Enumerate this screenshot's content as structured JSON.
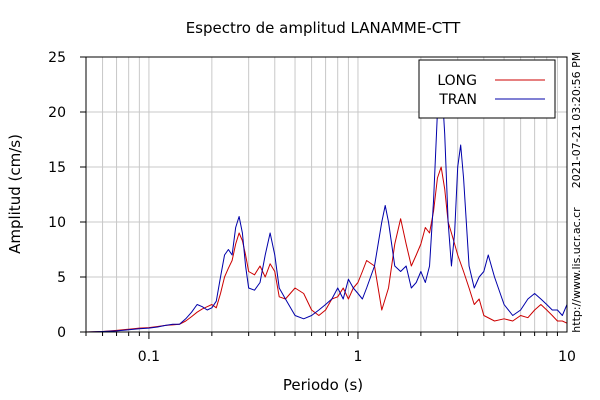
{
  "chart_data": {
    "type": "line",
    "title": "Espectro de amplitud LANAMME-CTT",
    "xlabel": "Periodo (s)",
    "ylabel": "Amplitud (cm/s)",
    "x_scale": "log",
    "xlim": [
      0.05,
      10
    ],
    "ylim": [
      0,
      25
    ],
    "x_ticks": [
      {
        "value": 0.1,
        "label": "0.1"
      },
      {
        "value": 1,
        "label": "1"
      },
      {
        "value": 10,
        "label": "10"
      }
    ],
    "y_ticks": [
      {
        "value": 0,
        "label": "0"
      },
      {
        "value": 5,
        "label": "5"
      },
      {
        "value": 10,
        "label": "10"
      },
      {
        "value": 15,
        "label": "15"
      },
      {
        "value": 20,
        "label": "20"
      },
      {
        "value": 25,
        "label": "25"
      }
    ],
    "grid": true,
    "legend_position": "top-right",
    "side_labels": {
      "timestamp": "2021-07-21 03:20:56 PM",
      "url": "http://www.lis.ucr.ac.cr"
    },
    "series": [
      {
        "name": "LONG",
        "color": "#cc0000",
        "points": [
          [
            0.05,
            0.0
          ],
          [
            0.06,
            0.05
          ],
          [
            0.07,
            0.15
          ],
          [
            0.08,
            0.25
          ],
          [
            0.09,
            0.35
          ],
          [
            0.1,
            0.4
          ],
          [
            0.11,
            0.5
          ],
          [
            0.12,
            0.6
          ],
          [
            0.13,
            0.65
          ],
          [
            0.14,
            0.7
          ],
          [
            0.15,
            1.0
          ],
          [
            0.16,
            1.4
          ],
          [
            0.17,
            1.8
          ],
          [
            0.18,
            2.1
          ],
          [
            0.19,
            2.3
          ],
          [
            0.2,
            2.5
          ],
          [
            0.21,
            2.2
          ],
          [
            0.22,
            3.5
          ],
          [
            0.23,
            5.0
          ],
          [
            0.24,
            5.8
          ],
          [
            0.25,
            6.5
          ],
          [
            0.26,
            8.0
          ],
          [
            0.27,
            9.0
          ],
          [
            0.28,
            8.3
          ],
          [
            0.29,
            7.0
          ],
          [
            0.3,
            5.5
          ],
          [
            0.32,
            5.2
          ],
          [
            0.34,
            6.0
          ],
          [
            0.36,
            5.0
          ],
          [
            0.38,
            6.2
          ],
          [
            0.4,
            5.5
          ],
          [
            0.42,
            3.2
          ],
          [
            0.45,
            3.0
          ],
          [
            0.5,
            4.0
          ],
          [
            0.55,
            3.5
          ],
          [
            0.6,
            2.0
          ],
          [
            0.65,
            1.5
          ],
          [
            0.7,
            2.0
          ],
          [
            0.75,
            3.0
          ],
          [
            0.8,
            3.2
          ],
          [
            0.85,
            4.0
          ],
          [
            0.9,
            3.0
          ],
          [
            0.95,
            4.0
          ],
          [
            1.0,
            4.5
          ],
          [
            1.05,
            5.5
          ],
          [
            1.1,
            6.5
          ],
          [
            1.2,
            6.0
          ],
          [
            1.3,
            2.0
          ],
          [
            1.4,
            4.0
          ],
          [
            1.5,
            8.0
          ],
          [
            1.6,
            10.3
          ],
          [
            1.7,
            8.0
          ],
          [
            1.8,
            6.0
          ],
          [
            1.9,
            7.0
          ],
          [
            2.0,
            8.0
          ],
          [
            2.1,
            9.5
          ],
          [
            2.2,
            9.0
          ],
          [
            2.3,
            11.0
          ],
          [
            2.4,
            14.0
          ],
          [
            2.5,
            15.0
          ],
          [
            2.6,
            13.0
          ],
          [
            2.7,
            10.0
          ],
          [
            2.8,
            9.0
          ],
          [
            2.9,
            8.0
          ],
          [
            3.0,
            7.0
          ],
          [
            3.2,
            5.5
          ],
          [
            3.4,
            4.0
          ],
          [
            3.6,
            2.5
          ],
          [
            3.8,
            3.0
          ],
          [
            4.0,
            1.5
          ],
          [
            4.5,
            1.0
          ],
          [
            5.0,
            1.2
          ],
          [
            5.5,
            1.0
          ],
          [
            6.0,
            1.5
          ],
          [
            6.5,
            1.3
          ],
          [
            7.0,
            2.0
          ],
          [
            7.5,
            2.5
          ],
          [
            8.0,
            2.0
          ],
          [
            8.5,
            1.5
          ],
          [
            9.0,
            1.0
          ],
          [
            9.5,
            1.0
          ],
          [
            10.0,
            0.8
          ]
        ]
      },
      {
        "name": "TRAN",
        "color": "#0000aa",
        "points": [
          [
            0.05,
            0.0
          ],
          [
            0.06,
            0.05
          ],
          [
            0.07,
            0.1
          ],
          [
            0.08,
            0.2
          ],
          [
            0.09,
            0.3
          ],
          [
            0.1,
            0.35
          ],
          [
            0.11,
            0.45
          ],
          [
            0.12,
            0.6
          ],
          [
            0.13,
            0.7
          ],
          [
            0.14,
            0.7
          ],
          [
            0.15,
            1.2
          ],
          [
            0.16,
            1.8
          ],
          [
            0.17,
            2.5
          ],
          [
            0.18,
            2.3
          ],
          [
            0.19,
            2.0
          ],
          [
            0.2,
            2.2
          ],
          [
            0.21,
            2.8
          ],
          [
            0.22,
            5.0
          ],
          [
            0.23,
            7.0
          ],
          [
            0.24,
            7.5
          ],
          [
            0.25,
            7.0
          ],
          [
            0.26,
            9.5
          ],
          [
            0.27,
            10.5
          ],
          [
            0.28,
            9.0
          ],
          [
            0.29,
            6.0
          ],
          [
            0.3,
            4.0
          ],
          [
            0.32,
            3.8
          ],
          [
            0.34,
            4.5
          ],
          [
            0.36,
            7.0
          ],
          [
            0.38,
            9.0
          ],
          [
            0.4,
            7.0
          ],
          [
            0.42,
            4.0
          ],
          [
            0.45,
            3.0
          ],
          [
            0.5,
            1.5
          ],
          [
            0.55,
            1.2
          ],
          [
            0.6,
            1.5
          ],
          [
            0.65,
            2.0
          ],
          [
            0.7,
            2.5
          ],
          [
            0.75,
            3.0
          ],
          [
            0.8,
            4.0
          ],
          [
            0.85,
            3.0
          ],
          [
            0.9,
            4.8
          ],
          [
            0.95,
            4.0
          ],
          [
            1.0,
            3.5
          ],
          [
            1.05,
            3.0
          ],
          [
            1.1,
            4.0
          ],
          [
            1.2,
            6.0
          ],
          [
            1.3,
            10.0
          ],
          [
            1.35,
            11.5
          ],
          [
            1.4,
            10.0
          ],
          [
            1.5,
            6.0
          ],
          [
            1.6,
            5.5
          ],
          [
            1.7,
            6.0
          ],
          [
            1.8,
            4.0
          ],
          [
            1.9,
            4.5
          ],
          [
            2.0,
            5.5
          ],
          [
            2.1,
            4.5
          ],
          [
            2.2,
            6.0
          ],
          [
            2.3,
            12.0
          ],
          [
            2.4,
            20.0
          ],
          [
            2.5,
            23.5
          ],
          [
            2.6,
            18.0
          ],
          [
            2.7,
            10.0
          ],
          [
            2.8,
            6.0
          ],
          [
            2.9,
            9.0
          ],
          [
            3.0,
            15.0
          ],
          [
            3.1,
            17.0
          ],
          [
            3.2,
            14.0
          ],
          [
            3.4,
            6.0
          ],
          [
            3.6,
            4.0
          ],
          [
            3.8,
            5.0
          ],
          [
            4.0,
            5.5
          ],
          [
            4.2,
            7.0
          ],
          [
            4.5,
            5.0
          ],
          [
            5.0,
            2.5
          ],
          [
            5.5,
            1.5
          ],
          [
            6.0,
            2.0
          ],
          [
            6.5,
            3.0
          ],
          [
            7.0,
            3.5
          ],
          [
            7.5,
            3.0
          ],
          [
            8.0,
            2.5
          ],
          [
            8.5,
            2.0
          ],
          [
            9.0,
            2.0
          ],
          [
            9.5,
            1.5
          ],
          [
            10.0,
            2.5
          ]
        ]
      }
    ]
  }
}
